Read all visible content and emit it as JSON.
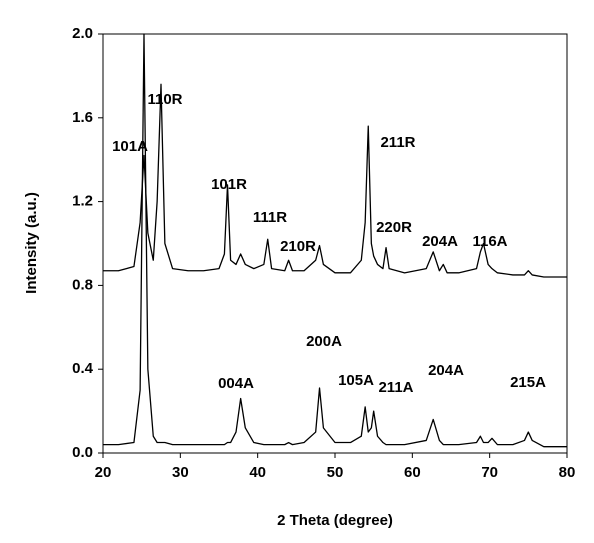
{
  "chart_data": {
    "type": "line",
    "x_label": "2 Theta (degree)",
    "y_label": "Intensity (a.u.)",
    "x": [
      20,
      22,
      24,
      24.8,
      25.3,
      25.8,
      26.5,
      27,
      27.5,
      28,
      29,
      31,
      33,
      35,
      35.7,
      36.1,
      36.5,
      37.2,
      37.8,
      38.4,
      39.5,
      40.8,
      41.3,
      41.8,
      43.5,
      44,
      44.5,
      46,
      47.5,
      48,
      48.5,
      50,
      52,
      53.4,
      53.9,
      54.3,
      54.7,
      55,
      55.5,
      56.2,
      56.6,
      57,
      59,
      61.8,
      62.7,
      63.5,
      64,
      64.5,
      66,
      68.3,
      68.8,
      69.2,
      69.8,
      70.3,
      71,
      73,
      74.5,
      75,
      75.5,
      77,
      80
    ],
    "series": [
      {
        "color": "#000000",
        "values": [
          0.87,
          0.87,
          0.89,
          1.1,
          1.42,
          1.05,
          0.92,
          1.2,
          1.76,
          1.0,
          0.88,
          0.87,
          0.87,
          0.88,
          0.95,
          1.28,
          0.92,
          0.9,
          0.95,
          0.9,
          0.88,
          0.9,
          1.02,
          0.88,
          0.87,
          0.92,
          0.87,
          0.87,
          0.92,
          0.99,
          0.9,
          0.86,
          0.86,
          0.92,
          1.1,
          1.56,
          1.0,
          0.94,
          0.9,
          0.88,
          0.98,
          0.88,
          0.86,
          0.88,
          0.96,
          0.87,
          0.9,
          0.86,
          0.86,
          0.88,
          0.96,
          1.0,
          0.9,
          0.88,
          0.86,
          0.85,
          0.85,
          0.87,
          0.85,
          0.84,
          0.84
        ]
      },
      {
        "color": "#000000",
        "values": [
          0.04,
          0.04,
          0.05,
          0.3,
          2.0,
          0.4,
          0.08,
          0.05,
          0.05,
          0.05,
          0.04,
          0.04,
          0.04,
          0.04,
          0.04,
          0.05,
          0.05,
          0.1,
          0.26,
          0.12,
          0.05,
          0.04,
          0.04,
          0.04,
          0.04,
          0.05,
          0.04,
          0.05,
          0.1,
          0.31,
          0.12,
          0.05,
          0.05,
          0.08,
          0.22,
          0.1,
          0.12,
          0.2,
          0.08,
          0.05,
          0.04,
          0.04,
          0.04,
          0.06,
          0.16,
          0.06,
          0.04,
          0.04,
          0.04,
          0.05,
          0.08,
          0.05,
          0.05,
          0.07,
          0.04,
          0.04,
          0.06,
          0.1,
          0.06,
          0.03,
          0.03
        ]
      }
    ],
    "annotations": [
      "101A",
      "110R",
      "101R",
      "111R",
      "210R",
      "211R",
      "220R",
      "204A",
      "116A",
      "004A",
      "200A",
      "105A",
      "211A",
      "204A",
      "215A"
    ],
    "xlim": [
      20,
      80
    ],
    "xticks": [
      20,
      30,
      40,
      50,
      60,
      70,
      80
    ],
    "ylim": [
      0,
      2
    ],
    "yticks": [
      {
        "value": 0,
        "label": "0.0"
      },
      {
        "value": 0.4,
        "label": "0.4"
      },
      {
        "value": 0.8,
        "label": "0.8"
      },
      {
        "value": 1.2,
        "label": "1.2"
      },
      {
        "value": 1.6,
        "label": "1.6"
      },
      {
        "value": 2,
        "label": "2.0"
      }
    ]
  }
}
